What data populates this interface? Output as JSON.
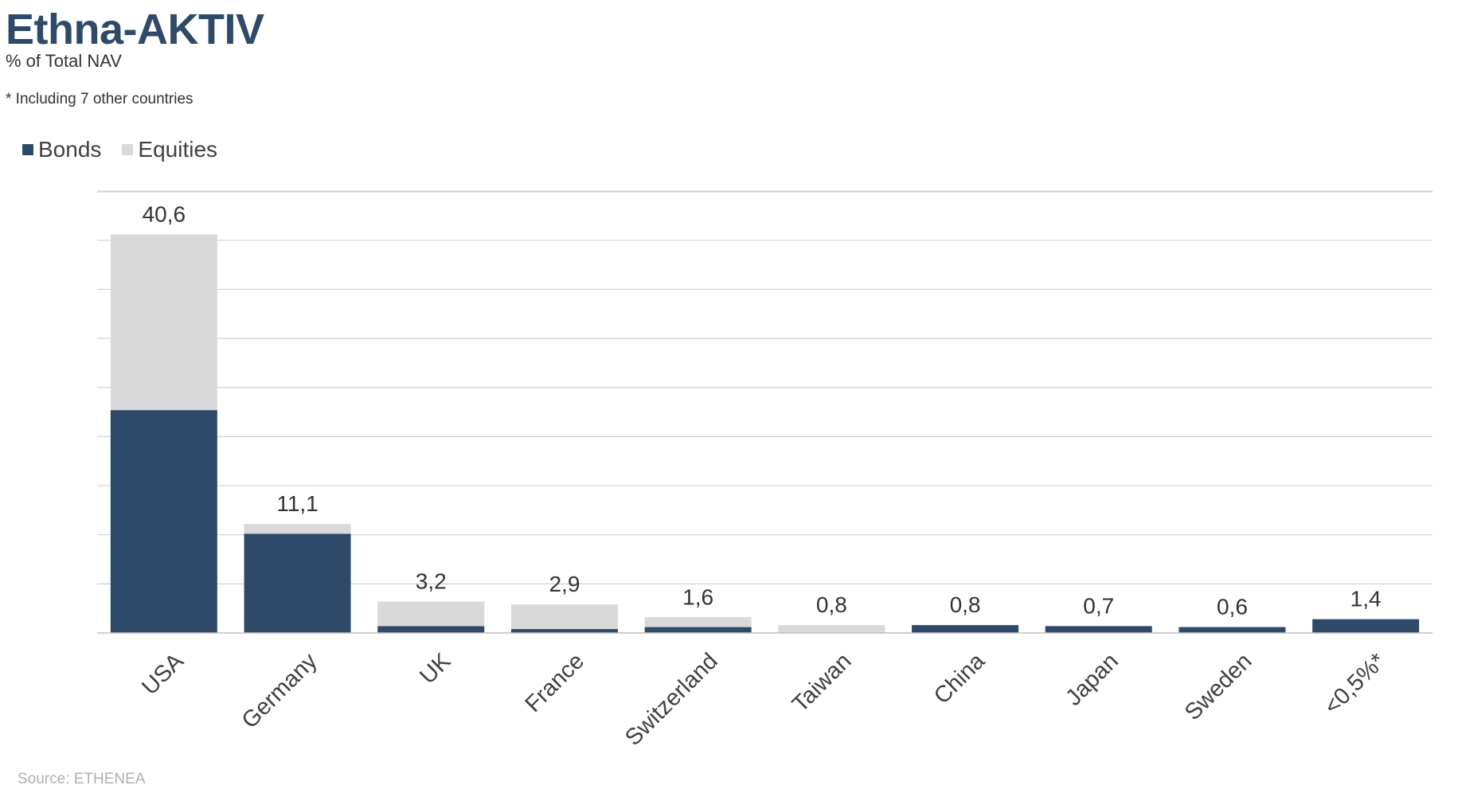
{
  "header": {
    "title": "Ethna-AKTIV",
    "subtitle": "% of Total NAV",
    "footnote": "* Including 7 other countries"
  },
  "legend": {
    "bonds_label": "Bonds",
    "equities_label": "Equities"
  },
  "colors": {
    "bonds": "#2e4a68",
    "equities": "#d9d9d9",
    "grid": "#d0d0d0",
    "label": "#333333"
  },
  "source": "Source: ETHENEA",
  "chart_data": {
    "type": "bar",
    "stacked": true,
    "categories": [
      "USA",
      "Germany",
      "UK",
      "France",
      "Switzerland",
      "Taiwan",
      "China",
      "Japan",
      "Sweden",
      "<0,5%*"
    ],
    "series": [
      {
        "name": "Bonds",
        "values": [
          22.7,
          10.1,
          0.7,
          0.4,
          0.6,
          0.0,
          0.8,
          0.7,
          0.6,
          1.4
        ]
      },
      {
        "name": "Equities",
        "values": [
          17.9,
          1.0,
          2.5,
          2.5,
          1.0,
          0.8,
          0.0,
          0.0,
          0.0,
          0.0
        ]
      }
    ],
    "totals": [
      "40,6",
      "11,1",
      "3,2",
      "2,9",
      "1,6",
      "0,8",
      "0,8",
      "0,7",
      "0,6",
      "1,4"
    ],
    "ylim": [
      0,
      45
    ],
    "grid": true,
    "legend_position": "top-left"
  }
}
